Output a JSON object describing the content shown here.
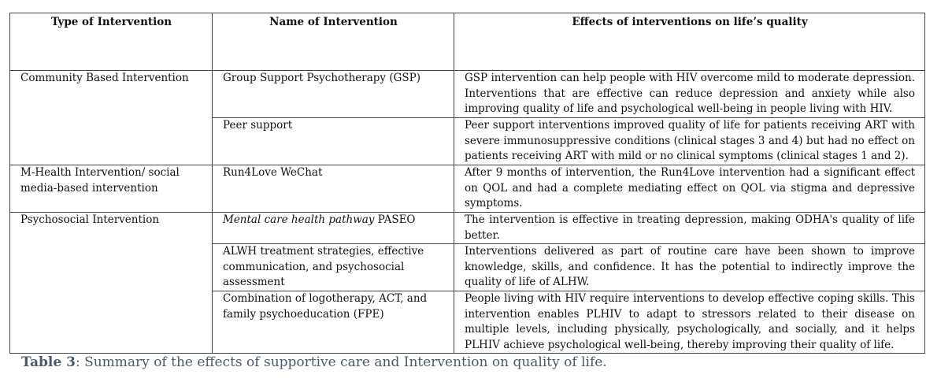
{
  "table": {
    "headers": [
      "Type of Intervention",
      "Name of Intervention",
      "Effects of interventions on life’s quality"
    ],
    "groups": [
      {
        "type": "Community Based Intervention"
      },
      {
        "type": "M-Health Intervention/ social media-based intervention"
      },
      {
        "type": "Psychosocial Intervention"
      }
    ],
    "rows": [
      {
        "name": "Group Support Psychotherapy (GSP)",
        "effect": "GSP intervention can help people with HIV overcome mild to moderate depression. Interventions that are effective can reduce depression and anxiety while also improving quality of life and psychological well-being in people living with HIV."
      },
      {
        "name": "Peer support",
        "effect": "Peer support interventions improved quality of life for patients receiving ART with severe immunosuppressive conditions (clinical stages 3 and 4) but had no effect on patients receiving ART with mild or no clinical symptoms (clinical stages 1 and 2)."
      },
      {
        "name": "Run4Love WeChat",
        "effect": "After 9 months of intervention, the Run4Love intervention had a significant effect on QOL and had a complete mediating effect on QOL via stigma and depressive symptoms."
      },
      {
        "name_italic": "Mental care health pathway",
        "name_rest": " PASEO",
        "effect": "The intervention is effective in treating depression, making ODHA's quality of life better."
      },
      {
        "name": "ALWH treatment strategies, effective communication, and psychosocial assessment",
        "effect": "Interventions delivered as part of routine care have been shown to improve knowledge, skills, and confidence. It has the potential to indirectly improve the quality of life of ALHW."
      },
      {
        "name": "Combination of logotherapy, ACT, and family psychoeducation (FPE)",
        "effect": "People living with HIV require interventions to develop effective coping skills. This intervention enables PLHIV to adapt to stressors related to their disease on multiple levels, including physically, psychologically, and socially, and it helps PLHIV achieve psychological well-being, thereby improving their quality of life."
      }
    ]
  },
  "caption": {
    "label": "Table 3",
    "text": ": Summary of the effects of supportive care and Intervention on quality of life."
  }
}
